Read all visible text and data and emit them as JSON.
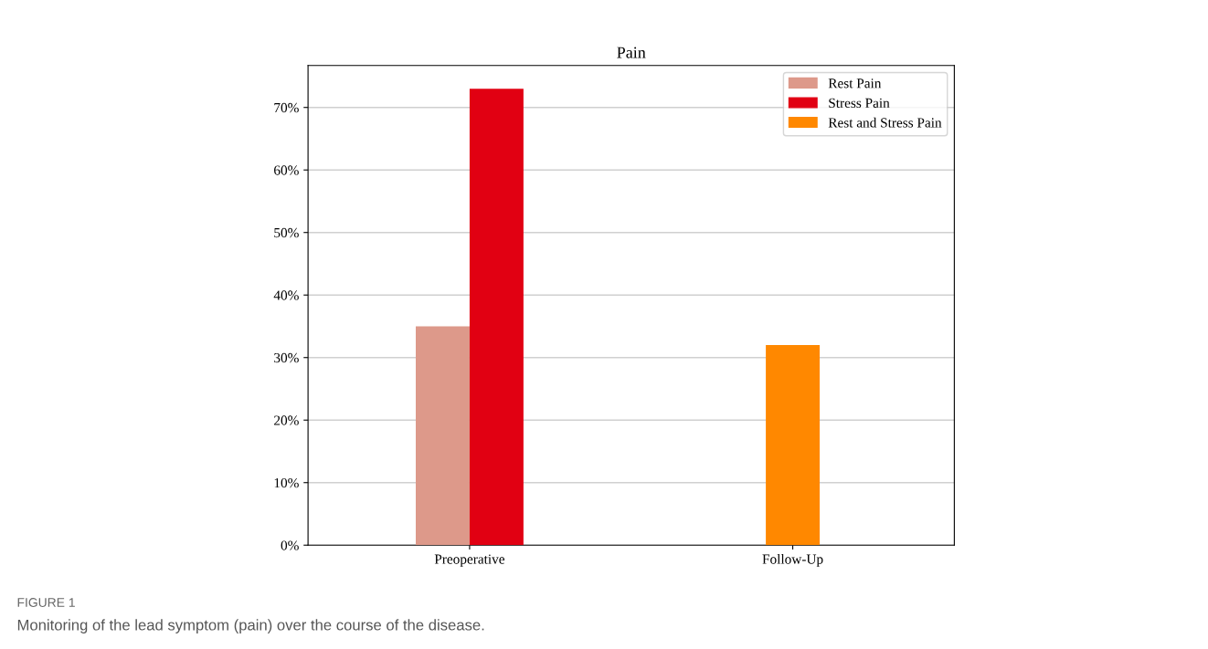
{
  "chart_data": {
    "type": "bar",
    "title": "Pain",
    "categories": [
      "Preoperative",
      "Follow-Up"
    ],
    "series": [
      {
        "name": "Rest Pain",
        "color": "#dd998a",
        "values": [
          35,
          null
        ]
      },
      {
        "name": "Stress Pain",
        "color": "#e10012",
        "values": [
          73,
          null
        ]
      },
      {
        "name": "Rest and Stress Pain",
        "color": "#ff8800",
        "values": [
          null,
          32
        ]
      }
    ],
    "ylim": [
      0,
      76.7
    ],
    "yticks": [
      {
        "value": 0,
        "label": "0%"
      },
      {
        "value": 10,
        "label": "10%"
      },
      {
        "value": 20,
        "label": "20%"
      },
      {
        "value": 30,
        "label": "30%"
      },
      {
        "value": 40,
        "label": "40%"
      },
      {
        "value": 50,
        "label": "50%"
      },
      {
        "value": 60,
        "label": "60%"
      },
      {
        "value": 70,
        "label": "70%"
      }
    ],
    "grid": "y",
    "legend": "top right",
    "annotations": [
      "FIGURE 1",
      "Monitoring of the lead symptom (pain) over the course of the disease."
    ]
  }
}
